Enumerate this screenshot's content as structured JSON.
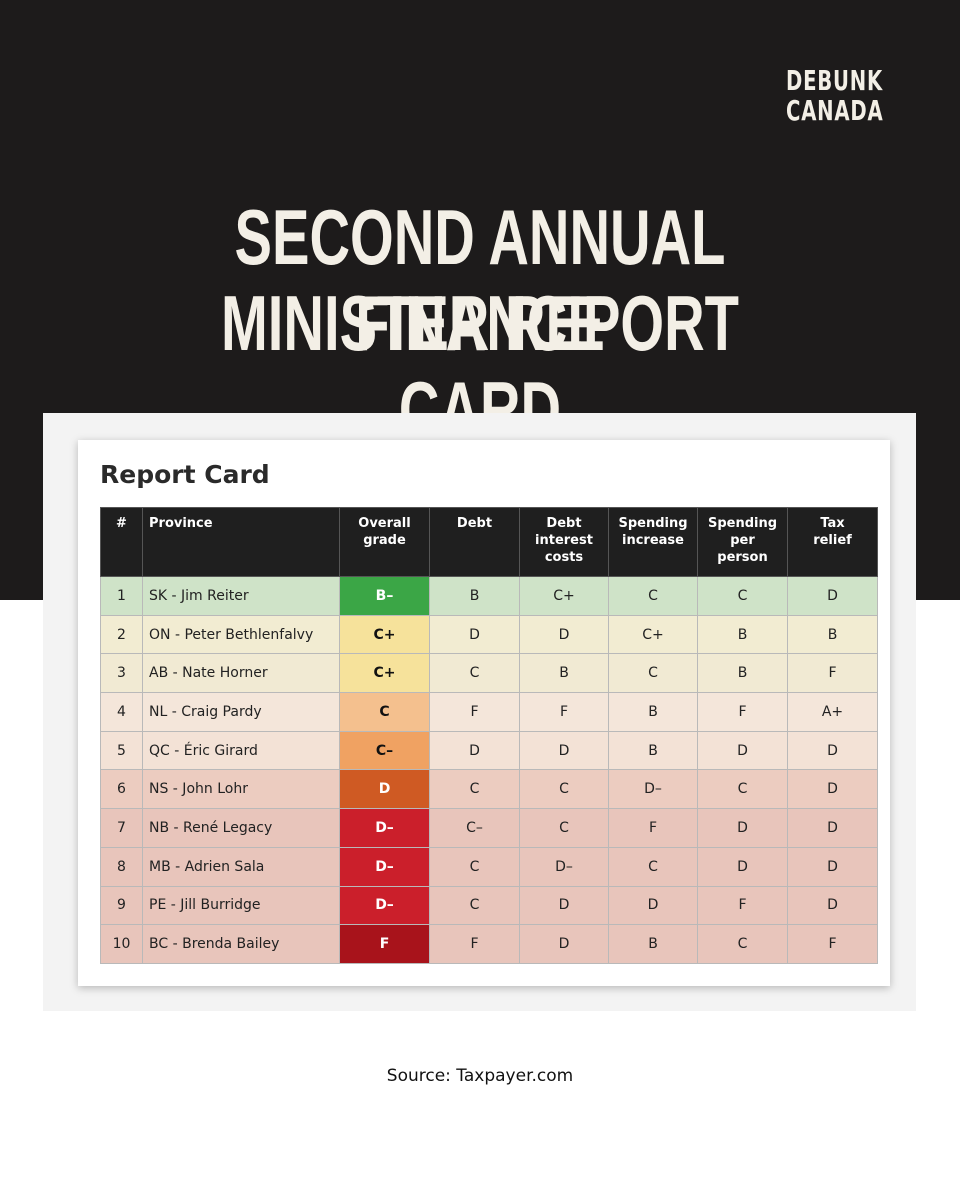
{
  "brand": {
    "line1": "DEBUNK",
    "line2": "CANADA"
  },
  "header": {
    "title_line1": "SECOND ANNUAL FINANCE",
    "title_line2": "MINISTER REPORT CARD"
  },
  "card": {
    "title": "Report Card"
  },
  "table": {
    "columns": [
      "#",
      "Province",
      "Overall\ngrade",
      "Debt",
      "Debt\ninterest\ncosts",
      "Spending\nincrease",
      "Spending\nper\nperson",
      "Tax\nrelief"
    ],
    "rows": [
      [
        "1",
        "SK - Jim Reiter",
        "B–",
        "B",
        "C+",
        "C",
        "C",
        "D"
      ],
      [
        "2",
        "ON - Peter Bethlenfalvy",
        "C+",
        "D",
        "D",
        "C+",
        "B",
        "B"
      ],
      [
        "3",
        "AB - Nate Horner",
        "C+",
        "C",
        "B",
        "C",
        "B",
        "F"
      ],
      [
        "4",
        "NL - Craig Pardy",
        "C",
        "F",
        "F",
        "B",
        "F",
        "A+"
      ],
      [
        "5",
        "QC - Éric Girard",
        "C–",
        "D",
        "D",
        "B",
        "D",
        "D"
      ],
      [
        "6",
        "NS - John Lohr",
        "D",
        "C",
        "C",
        "D–",
        "C",
        "D"
      ],
      [
        "7",
        "NB - René Legacy",
        "D–",
        "C–",
        "C",
        "F",
        "D",
        "D"
      ],
      [
        "8",
        "MB - Adrien Sala",
        "D–",
        "C",
        "D–",
        "C",
        "D",
        "D"
      ],
      [
        "9",
        "PE - Jill Burridge",
        "D–",
        "C",
        "D",
        "D",
        "F",
        "D"
      ],
      [
        "10",
        "BC - Brenda Bailey",
        "F",
        "F",
        "D",
        "B",
        "C",
        "F"
      ]
    ]
  },
  "footer": {
    "source": "Source: Taxpayer.com"
  }
}
